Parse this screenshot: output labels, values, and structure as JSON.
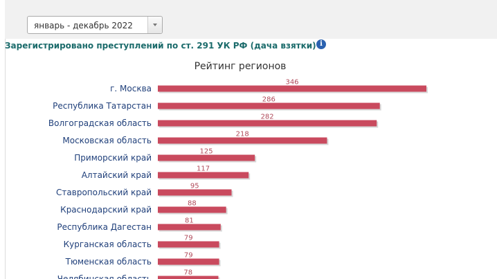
{
  "filter": {
    "period": "январь - декабрь 2022"
  },
  "heading": "Зарегистрировано преступлений по ст. 291 УК РФ (дача взятки)",
  "info_icon": "info-icon",
  "colors": {
    "bar": "#c94a5e",
    "bar_label": "#b04a5a",
    "category_label": "#1f3f7a",
    "heading": "#1b6b6b"
  },
  "chart_data": {
    "type": "bar",
    "orientation": "horizontal",
    "title": "Рейтинг регионов",
    "categories": [
      "г. Москва",
      "Республика Татарстан",
      "Волгоградская область",
      "Московская область",
      "Приморский край",
      "Алтайский край",
      "Ставропольский край",
      "Краснодарский край",
      "Республика Дагестан",
      "Курганская область",
      "Тюменская область",
      "Челябинская область"
    ],
    "values": [
      346,
      286,
      282,
      218,
      125,
      117,
      95,
      88,
      81,
      79,
      79,
      78
    ],
    "xlabel": "",
    "ylabel": "",
    "grid": false,
    "legend": "none"
  }
}
